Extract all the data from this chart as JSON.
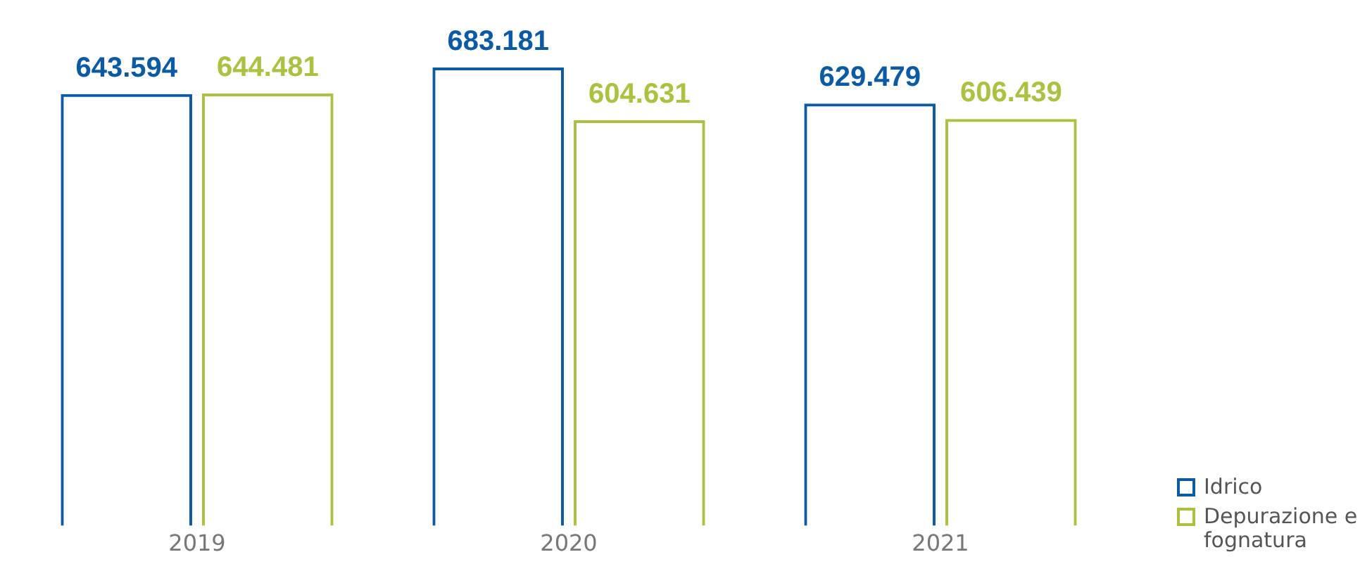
{
  "chart_data": {
    "type": "bar",
    "categories": [
      "2019",
      "2020",
      "2021"
    ],
    "series": [
      {
        "name": "Idrico",
        "color": "#0b5aa6",
        "values": [
          643594,
          683181,
          629479
        ],
        "value_labels": [
          "643.594",
          "683.181",
          "629.479"
        ]
      },
      {
        "name": "Depurazione e fognatura",
        "color": "#a9c23f",
        "values": [
          644481,
          604631,
          606439
        ],
        "value_labels": [
          "644.481",
          "604.631",
          "606.439"
        ]
      }
    ],
    "legend": "bottom right",
    "tick_labels": "x"
  }
}
